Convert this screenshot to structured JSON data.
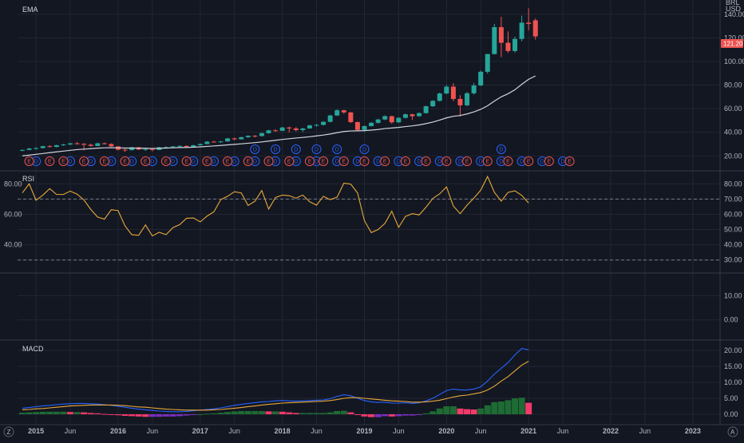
{
  "header": {
    "currency_top": "BRL",
    "currency": "USD"
  },
  "panels": {
    "main_title": "EMA",
    "rsi_title": "RSI",
    "macd_title": "MACD"
  },
  "price_tag": "121.20",
  "corner_icons": {
    "left": "Z",
    "right": "A"
  },
  "colors": {
    "up": "#26a69a",
    "down": "#ef5350",
    "ema": "#d1d4dc",
    "rsi": "#e8a93a",
    "macd": "#2962ff",
    "signal": "#e8a93a",
    "hist_up": "#1e6b33",
    "hist_down": "#f23a6b",
    "hist_neg": "#7b2fbf",
    "grid": "#232632",
    "div": "#2962ff",
    "earn": "#ef5350"
  },
  "chart_data": [
    {
      "type": "candlestick",
      "title": "EMA",
      "y_ticks": [
        20,
        40,
        60,
        80,
        100,
        120,
        140
      ],
      "y_tick_labels": [
        "20.00",
        "40.00",
        "60.00",
        "80.00",
        "100.00",
        "120.00",
        "140.00"
      ],
      "ylim": [
        8,
        152
      ],
      "x_labels": [
        "2015",
        "Jun",
        "2016",
        "Jun",
        "2017",
        "Jun",
        "2018",
        "Jun",
        "2019",
        "Jun",
        "2020",
        "Jun",
        "2021",
        "Jun",
        "2022",
        "Jun",
        "2023"
      ],
      "x_label_dates": [
        "2015-01",
        "2015-06",
        "2016-01",
        "2016-06",
        "2017-01",
        "2017-06",
        "2018-01",
        "2018-06",
        "2019-01",
        "2019-06",
        "2020-01",
        "2020-06",
        "2021-01",
        "2021-06",
        "2022-01",
        "2022-06",
        "2023-01"
      ],
      "candles": [
        {
          "date": "2014-11",
          "o": 24.6,
          "h": 25.4,
          "l": 23.8,
          "c": 25.0
        },
        {
          "date": "2014-12",
          "o": 25.0,
          "h": 26.8,
          "l": 24.8,
          "c": 26.2
        },
        {
          "date": "2015-01",
          "o": 26.2,
          "h": 27.2,
          "l": 25.2,
          "c": 26.6
        },
        {
          "date": "2015-02",
          "o": 26.6,
          "h": 28.6,
          "l": 26.2,
          "c": 28.2
        },
        {
          "date": "2015-03",
          "o": 28.2,
          "h": 29.0,
          "l": 27.0,
          "c": 27.6
        },
        {
          "date": "2015-04",
          "o": 27.6,
          "h": 29.4,
          "l": 27.0,
          "c": 29.0
        },
        {
          "date": "2015-05",
          "o": 29.0,
          "h": 30.2,
          "l": 28.4,
          "c": 29.6
        },
        {
          "date": "2015-06",
          "o": 29.6,
          "h": 31.0,
          "l": 29.0,
          "c": 30.6
        },
        {
          "date": "2015-07",
          "o": 30.6,
          "h": 31.8,
          "l": 29.6,
          "c": 30.2
        },
        {
          "date": "2015-08",
          "o": 30.2,
          "h": 30.8,
          "l": 24.6,
          "c": 29.4
        },
        {
          "date": "2015-09",
          "o": 29.4,
          "h": 30.4,
          "l": 27.8,
          "c": 28.4
        },
        {
          "date": "2015-10",
          "o": 28.4,
          "h": 31.2,
          "l": 28.0,
          "c": 30.6
        },
        {
          "date": "2015-11",
          "o": 30.6,
          "h": 31.4,
          "l": 29.6,
          "c": 30.0
        },
        {
          "date": "2015-12",
          "o": 30.0,
          "h": 30.6,
          "l": 27.6,
          "c": 28.0
        },
        {
          "date": "2016-01",
          "o": 28.0,
          "h": 28.2,
          "l": 24.6,
          "c": 25.2
        },
        {
          "date": "2016-02",
          "o": 25.2,
          "h": 26.0,
          "l": 23.4,
          "c": 24.8
        },
        {
          "date": "2016-03",
          "o": 24.8,
          "h": 27.6,
          "l": 24.6,
          "c": 27.2
        },
        {
          "date": "2016-04",
          "o": 27.2,
          "h": 27.6,
          "l": 24.8,
          "c": 25.4
        },
        {
          "date": "2016-05",
          "o": 25.4,
          "h": 26.6,
          "l": 24.2,
          "c": 25.8
        },
        {
          "date": "2016-06",
          "o": 25.8,
          "h": 26.4,
          "l": 23.8,
          "c": 25.0
        },
        {
          "date": "2016-07",
          "o": 25.0,
          "h": 27.6,
          "l": 24.8,
          "c": 27.2
        },
        {
          "date": "2016-08",
          "o": 27.2,
          "h": 28.0,
          "l": 26.6,
          "c": 27.4
        },
        {
          "date": "2016-09",
          "o": 27.4,
          "h": 28.4,
          "l": 26.8,
          "c": 28.0
        },
        {
          "date": "2016-10",
          "o": 28.0,
          "h": 29.0,
          "l": 27.2,
          "c": 28.4
        },
        {
          "date": "2016-11",
          "o": 28.4,
          "h": 28.8,
          "l": 26.6,
          "c": 27.6
        },
        {
          "date": "2016-12",
          "o": 27.6,
          "h": 29.4,
          "l": 27.2,
          "c": 29.0
        },
        {
          "date": "2017-01",
          "o": 29.0,
          "h": 30.4,
          "l": 28.6,
          "c": 30.0
        },
        {
          "date": "2017-02",
          "o": 30.0,
          "h": 32.4,
          "l": 29.8,
          "c": 32.0
        },
        {
          "date": "2017-03",
          "o": 32.0,
          "h": 32.8,
          "l": 31.2,
          "c": 31.8
        },
        {
          "date": "2017-04",
          "o": 31.8,
          "h": 32.6,
          "l": 31.0,
          "c": 32.2
        },
        {
          "date": "2017-05",
          "o": 32.2,
          "h": 35.2,
          "l": 32.0,
          "c": 34.8
        },
        {
          "date": "2017-06",
          "o": 34.8,
          "h": 35.4,
          "l": 33.2,
          "c": 34.0
        },
        {
          "date": "2017-07",
          "o": 34.0,
          "h": 36.2,
          "l": 33.8,
          "c": 35.8
        },
        {
          "date": "2017-08",
          "o": 35.8,
          "h": 37.4,
          "l": 35.2,
          "c": 37.0
        },
        {
          "date": "2017-09",
          "o": 37.0,
          "h": 37.6,
          "l": 35.6,
          "c": 36.8
        },
        {
          "date": "2017-10",
          "o": 36.8,
          "h": 39.8,
          "l": 36.4,
          "c": 39.2
        },
        {
          "date": "2017-11",
          "o": 39.2,
          "h": 42.0,
          "l": 38.8,
          "c": 41.6
        },
        {
          "date": "2017-12",
          "o": 41.6,
          "h": 42.6,
          "l": 40.4,
          "c": 41.2
        },
        {
          "date": "2018-01",
          "o": 41.2,
          "h": 44.6,
          "l": 41.0,
          "c": 44.0
        },
        {
          "date": "2018-02",
          "o": 44.0,
          "h": 44.8,
          "l": 39.8,
          "c": 43.2
        },
        {
          "date": "2018-03",
          "o": 43.2,
          "h": 44.4,
          "l": 40.6,
          "c": 41.8
        },
        {
          "date": "2018-04",
          "o": 41.8,
          "h": 43.6,
          "l": 40.2,
          "c": 43.2
        },
        {
          "date": "2018-05",
          "o": 43.2,
          "h": 46.4,
          "l": 43.0,
          "c": 45.8
        },
        {
          "date": "2018-06",
          "o": 45.8,
          "h": 47.0,
          "l": 44.8,
          "c": 46.2
        },
        {
          "date": "2018-07",
          "o": 46.2,
          "h": 49.4,
          "l": 45.8,
          "c": 48.8
        },
        {
          "date": "2018-08",
          "o": 48.8,
          "h": 54.8,
          "l": 48.4,
          "c": 54.2
        },
        {
          "date": "2018-09",
          "o": 54.2,
          "h": 59.4,
          "l": 53.8,
          "c": 58.6
        },
        {
          "date": "2018-10",
          "o": 58.6,
          "h": 59.0,
          "l": 55.6,
          "c": 56.8
        },
        {
          "date": "2018-11",
          "o": 56.8,
          "h": 57.2,
          "l": 47.8,
          "c": 48.6
        },
        {
          "date": "2018-12",
          "o": 48.6,
          "h": 49.0,
          "l": 41.2,
          "c": 42.0
        },
        {
          "date": "2019-01",
          "o": 42.0,
          "h": 45.8,
          "l": 40.4,
          "c": 45.2
        },
        {
          "date": "2019-02",
          "o": 45.2,
          "h": 48.6,
          "l": 44.8,
          "c": 48.0
        },
        {
          "date": "2019-03",
          "o": 48.0,
          "h": 51.4,
          "l": 47.2,
          "c": 50.8
        },
        {
          "date": "2019-04",
          "o": 50.8,
          "h": 54.4,
          "l": 50.2,
          "c": 53.6
        },
        {
          "date": "2019-05",
          "o": 53.6,
          "h": 54.0,
          "l": 47.2,
          "c": 48.4
        },
        {
          "date": "2019-06",
          "o": 48.4,
          "h": 52.8,
          "l": 47.8,
          "c": 52.2
        },
        {
          "date": "2019-07",
          "o": 52.2,
          "h": 55.8,
          "l": 51.6,
          "c": 55.2
        },
        {
          "date": "2019-08",
          "o": 55.2,
          "h": 55.6,
          "l": 50.4,
          "c": 53.6
        },
        {
          "date": "2019-09",
          "o": 53.6,
          "h": 56.8,
          "l": 53.0,
          "c": 56.2
        },
        {
          "date": "2019-10",
          "o": 56.2,
          "h": 62.6,
          "l": 55.8,
          "c": 62.0
        },
        {
          "date": "2019-11",
          "o": 62.0,
          "h": 67.2,
          "l": 61.4,
          "c": 66.6
        },
        {
          "date": "2019-12",
          "o": 66.6,
          "h": 73.6,
          "l": 66.0,
          "c": 72.8
        },
        {
          "date": "2020-01",
          "o": 72.8,
          "h": 80.0,
          "l": 72.2,
          "c": 78.6
        },
        {
          "date": "2020-02",
          "o": 78.6,
          "h": 81.6,
          "l": 66.2,
          "c": 68.2
        },
        {
          "date": "2020-03",
          "o": 68.2,
          "h": 71.4,
          "l": 53.2,
          "c": 62.8
        },
        {
          "date": "2020-04",
          "o": 62.8,
          "h": 74.2,
          "l": 62.0,
          "c": 73.0
        },
        {
          "date": "2020-05",
          "o": 73.0,
          "h": 81.6,
          "l": 71.8,
          "c": 79.6
        },
        {
          "date": "2020-06",
          "o": 79.6,
          "h": 92.4,
          "l": 79.2,
          "c": 91.2
        },
        {
          "date": "2020-07",
          "o": 91.2,
          "h": 106.4,
          "l": 89.6,
          "c": 106.2
        },
        {
          "date": "2020-08",
          "o": 106.2,
          "h": 131.8,
          "l": 105.8,
          "c": 129.0
        },
        {
          "date": "2020-09",
          "o": 129.0,
          "h": 137.8,
          "l": 103.6,
          "c": 115.8
        },
        {
          "date": "2020-10",
          "o": 115.8,
          "h": 125.4,
          "l": 107.2,
          "c": 108.8
        },
        {
          "date": "2020-11",
          "o": 108.8,
          "h": 121.0,
          "l": 107.4,
          "c": 119.0
        },
        {
          "date": "2020-12",
          "o": 119.0,
          "h": 138.8,
          "l": 117.0,
          "c": 132.8
        },
        {
          "date": "2021-01",
          "o": 132.8,
          "h": 145.0,
          "l": 126.4,
          "c": 131.8
        },
        {
          "date": "2021-02",
          "o": 134.8,
          "h": 136.4,
          "l": 118.4,
          "c": 121.2
        }
      ],
      "ema": [
        20.0,
        20.6,
        21.3,
        22.0,
        22.7,
        23.4,
        24.0,
        24.7,
        25.3,
        25.7,
        26.1,
        26.5,
        26.8,
        26.9,
        26.8,
        26.6,
        26.6,
        26.5,
        26.4,
        26.3,
        26.4,
        26.6,
        26.8,
        27.0,
        27.1,
        27.3,
        27.6,
        28.0,
        28.4,
        28.8,
        29.3,
        29.7,
        30.2,
        30.7,
        31.2,
        31.8,
        32.5,
        33.2,
        33.9,
        34.5,
        35.1,
        35.6,
        36.2,
        36.9,
        37.6,
        38.5,
        39.6,
        40.6,
        41.1,
        41.2,
        41.4,
        41.8,
        42.3,
        43.1,
        43.6,
        44.1,
        44.8,
        45.4,
        46.2,
        47.3,
        48.6,
        50.3,
        52.2,
        53.5,
        54.2,
        55.5,
        57.2,
        59.4,
        62.4,
        66.4,
        70.0,
        72.6,
        76.0,
        80.6,
        84.8,
        87.7
      ],
      "events_div": [
        "2015-01",
        "2015-06",
        "2015-09",
        "2015-12",
        "2016-03",
        "2016-06",
        "2016-09",
        "2016-12",
        "2017-03",
        "2017-06",
        "2017-09",
        "2017-12",
        "2018-03",
        "2018-06",
        "2018-09",
        "2018-12",
        "2019-03",
        "2019-06",
        "2019-09",
        "2019-12",
        "2020-03",
        "2020-06",
        "2020-09",
        "2020-12",
        "2021-03",
        "2021-06"
      ],
      "events_div_upper": [
        "2017-09",
        "2017-12",
        "2018-03",
        "2018-06",
        "2018-09",
        "2019-01",
        "2020-09"
      ],
      "events_earn": [
        "2014-12",
        "2015-03",
        "2015-05",
        "2015-08",
        "2015-11",
        "2016-02",
        "2016-05",
        "2016-08",
        "2016-11",
        "2017-02",
        "2017-05",
        "2017-08",
        "2017-11",
        "2018-02",
        "2018-05",
        "2018-07",
        "2018-10",
        "2019-01",
        "2019-04",
        "2019-07",
        "2019-10",
        "2020-01",
        "2020-04",
        "2020-07",
        "2020-10",
        "2021-01",
        "2021-04",
        "2021-07"
      ]
    },
    {
      "type": "line",
      "title": "RSI",
      "y_ticks": [
        30,
        40,
        50,
        60,
        70,
        80
      ],
      "y_tick_labels": [
        "30.00",
        "40.00",
        "50.00",
        "60.00",
        "70.00",
        "80.00"
      ],
      "left_ticks": [
        40,
        60,
        80
      ],
      "left_tick_labels": [
        "40.00",
        "60.00",
        "80.00"
      ],
      "bands": [
        30,
        70
      ],
      "ylim": [
        22,
        88
      ],
      "values": [
        74.0,
        80.0,
        69.2,
        72.6,
        76.8,
        73.0,
        73.0,
        75.2,
        73.2,
        69.4,
        63.2,
        58.2,
        56.8,
        63.0,
        62.4,
        52.4,
        46.6,
        46.2,
        53.0,
        45.8,
        48.2,
        46.6,
        51.2,
        53.2,
        57.4,
        57.6,
        55.0,
        58.8,
        61.6,
        69.6,
        71.8,
        74.8,
        74.0,
        65.8,
        68.6,
        75.6,
        63.4,
        71.0,
        72.6,
        72.2,
        70.6,
        72.6,
        68.2,
        66.0,
        71.8,
        69.6,
        71.2,
        80.4,
        79.8,
        74.0,
        55.8,
        48.0,
        50.0,
        54.0,
        62.0,
        51.4,
        58.6,
        60.4,
        59.6,
        64.6,
        70.4,
        73.4,
        78.0,
        65.4,
        60.4,
        66.0,
        70.6,
        75.8,
        84.8,
        74.4,
        68.6,
        74.4,
        75.4,
        72.4,
        67.4
      ]
    },
    {
      "type": "empty",
      "y_ticks": [
        0,
        10
      ],
      "y_tick_labels": [
        "0.00",
        "10.00"
      ],
      "ylim": [
        -8,
        19
      ]
    },
    {
      "type": "line+bar",
      "title": "MACD",
      "y_ticks": [
        0,
        5,
        10,
        15,
        20
      ],
      "y_tick_labels": [
        "0.00",
        "5.00",
        "10.00",
        "15.00",
        "20.00"
      ],
      "ylim": [
        -3,
        23
      ],
      "macd": [
        1.9,
        2.1,
        2.4,
        2.6,
        2.8,
        3.0,
        3.2,
        3.3,
        3.4,
        3.4,
        3.3,
        3.2,
        3.0,
        2.8,
        2.5,
        2.2,
        1.9,
        1.6,
        1.4,
        1.2,
        1.0,
        0.9,
        0.8,
        0.8,
        0.9,
        1.1,
        1.3,
        1.5,
        1.7,
        2.0,
        2.4,
        2.8,
        3.1,
        3.4,
        3.6,
        3.9,
        4.0,
        4.2,
        4.3,
        4.2,
        4.1,
        4.2,
        4.3,
        4.4,
        4.5,
        4.9,
        5.6,
        6.1,
        5.8,
        5.0,
        4.3,
        3.9,
        3.7,
        3.8,
        3.5,
        3.5,
        3.6,
        3.4,
        3.6,
        4.2,
        5.0,
        6.2,
        7.4,
        7.9,
        7.6,
        7.6,
        7.9,
        8.6,
        10.4,
        12.6,
        14.4,
        16.2,
        18.6,
        20.6,
        20.2
      ],
      "signal": [
        1.4,
        1.5,
        1.7,
        1.8,
        2.0,
        2.2,
        2.4,
        2.6,
        2.7,
        2.8,
        2.9,
        2.9,
        2.9,
        2.9,
        2.8,
        2.7,
        2.5,
        2.3,
        2.2,
        2.0,
        1.8,
        1.6,
        1.5,
        1.4,
        1.3,
        1.3,
        1.3,
        1.3,
        1.4,
        1.5,
        1.7,
        1.9,
        2.1,
        2.4,
        2.6,
        2.9,
        3.1,
        3.3,
        3.5,
        3.6,
        3.7,
        3.8,
        3.9,
        4.0,
        4.1,
        4.3,
        4.6,
        5.0,
        5.2,
        5.2,
        5.0,
        4.8,
        4.6,
        4.4,
        4.2,
        4.1,
        4.0,
        3.8,
        3.8,
        3.9,
        4.1,
        4.4,
        4.9,
        5.4,
        5.8,
        6.0,
        6.4,
        6.8,
        7.6,
        8.8,
        10.4,
        11.8,
        13.6,
        15.4,
        16.6
      ],
      "histogram": [
        0.5,
        0.6,
        0.7,
        0.8,
        0.8,
        0.8,
        0.8,
        0.7,
        0.7,
        0.6,
        0.4,
        0.3,
        0.1,
        -0.1,
        -0.3,
        -0.5,
        -0.6,
        -0.7,
        -0.8,
        -0.8,
        -0.8,
        -0.7,
        -0.7,
        -0.6,
        -0.4,
        -0.2,
        0.0,
        0.2,
        0.3,
        0.5,
        0.7,
        0.9,
        1.0,
        1.0,
        1.0,
        1.0,
        0.9,
        0.9,
        0.8,
        0.6,
        0.4,
        0.4,
        0.4,
        0.4,
        0.4,
        0.6,
        1.0,
        1.1,
        0.6,
        -0.2,
        -0.7,
        -0.9,
        -0.9,
        -0.6,
        -0.7,
        -0.6,
        -0.4,
        -0.4,
        -0.2,
        0.3,
        0.9,
        1.8,
        2.5,
        2.5,
        1.8,
        1.6,
        1.5,
        1.8,
        2.8,
        3.8,
        4.0,
        4.4,
        5.0,
        5.2,
        3.6
      ]
    }
  ]
}
